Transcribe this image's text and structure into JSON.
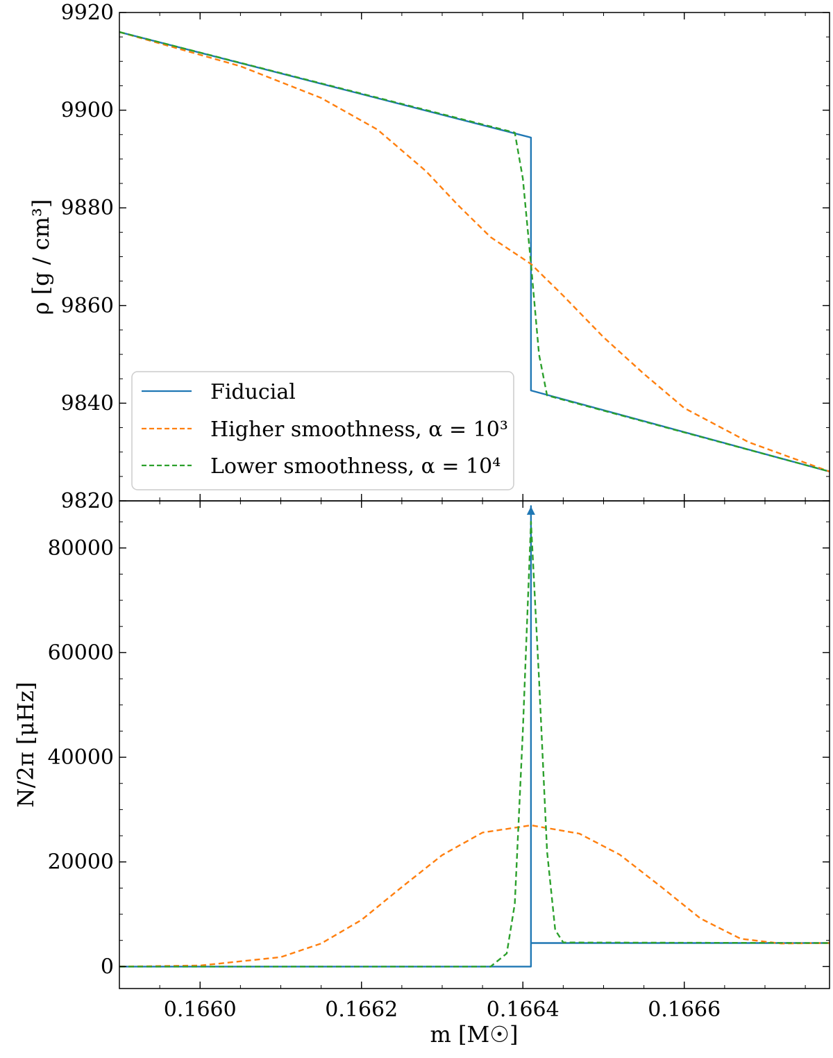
{
  "chart_data": [
    {
      "type": "line",
      "panel": "top",
      "ylabel": "ρ [g / cm³]",
      "xlim": [
        0.1659,
        0.16678
      ],
      "ylim": [
        9820,
        9920
      ],
      "y_ticks": [
        9820,
        9840,
        9860,
        9880,
        9900,
        9920
      ],
      "grid": false,
      "legend_position": "lower-left",
      "series": [
        {
          "name": "Fiducial",
          "style": "solid",
          "color": "#1f77b4",
          "x": [
            0.1659,
            0.16641,
            0.16641,
            0.16678
          ],
          "y": [
            9916,
            9894.4,
            9842.6,
            9826
          ]
        },
        {
          "name": "Higher smoothness, α = 10³",
          "style": "dashed",
          "color": "#ff7f0e",
          "x": [
            0.1659,
            0.16605,
            0.16615,
            0.16622,
            0.16628,
            0.16632,
            0.16636,
            0.16641,
            0.16645,
            0.1665,
            0.16655,
            0.1666,
            0.16668,
            0.16678
          ],
          "y": [
            9916,
            9909.0,
            9902.5,
            9896.0,
            9887.5,
            9880.5,
            9874.0,
            9868.5,
            9862.0,
            9853.5,
            9846.0,
            9839.0,
            9832.0,
            9826
          ]
        },
        {
          "name": "Lower smoothness, α = 10⁴",
          "style": "dashed",
          "color": "#2ca02c",
          "x": [
            0.1659,
            0.16639,
            0.1664,
            0.16641,
            0.16642,
            0.16643,
            0.16678
          ],
          "y": [
            9916,
            9895.4,
            9886.0,
            9868.5,
            9850.0,
            9841.6,
            9826
          ]
        }
      ]
    },
    {
      "type": "line",
      "panel": "bottom",
      "xlabel": "m [M☉]",
      "ylabel": "N/2π [μHz]",
      "xlim": [
        0.1659,
        0.16678
      ],
      "ylim": [
        -4200,
        89000
      ],
      "x_ticks": [
        "0.1660",
        "0.1662",
        "0.1664",
        "0.1666"
      ],
      "x_tick_values": [
        0.166,
        0.1662,
        0.1664,
        0.1666
      ],
      "y_ticks": [
        0,
        20000,
        40000,
        60000,
        80000
      ],
      "grid": false,
      "series": [
        {
          "name": "Fiducial",
          "style": "solid",
          "color": "#1f77b4",
          "x": [
            0.1659,
            0.16641,
            0.16641,
            0.16641,
            0.16643,
            0.16678
          ],
          "y": [
            0,
            0,
            88000,
            4500,
            4500,
            4500
          ],
          "arrow_at_x": 0.16641
        },
        {
          "name": "Higher smoothness, α = 10³",
          "style": "dashed",
          "color": "#ff7f0e",
          "x": [
            0.1659,
            0.166,
            0.1661,
            0.16615,
            0.1662,
            0.16625,
            0.1663,
            0.16635,
            0.16641,
            0.16647,
            0.16652,
            0.16657,
            0.16662,
            0.16667,
            0.16672,
            0.16678
          ],
          "y": [
            0,
            200,
            1800,
            4400,
            8900,
            15200,
            21300,
            25600,
            27000,
            25400,
            21400,
            15400,
            9200,
            5300,
            4400,
            4500
          ]
        },
        {
          "name": "Lower smoothness, α = 10⁴",
          "style": "dashed",
          "color": "#2ca02c",
          "x": [
            0.1659,
            0.16636,
            0.16638,
            0.16639,
            0.1664,
            0.16641,
            0.16642,
            0.16643,
            0.16644,
            0.16645,
            0.16678
          ],
          "y": [
            0,
            0,
            2500,
            12000,
            45000,
            85000,
            55000,
            22000,
            7000,
            4600,
            4500
          ]
        }
      ]
    }
  ]
}
